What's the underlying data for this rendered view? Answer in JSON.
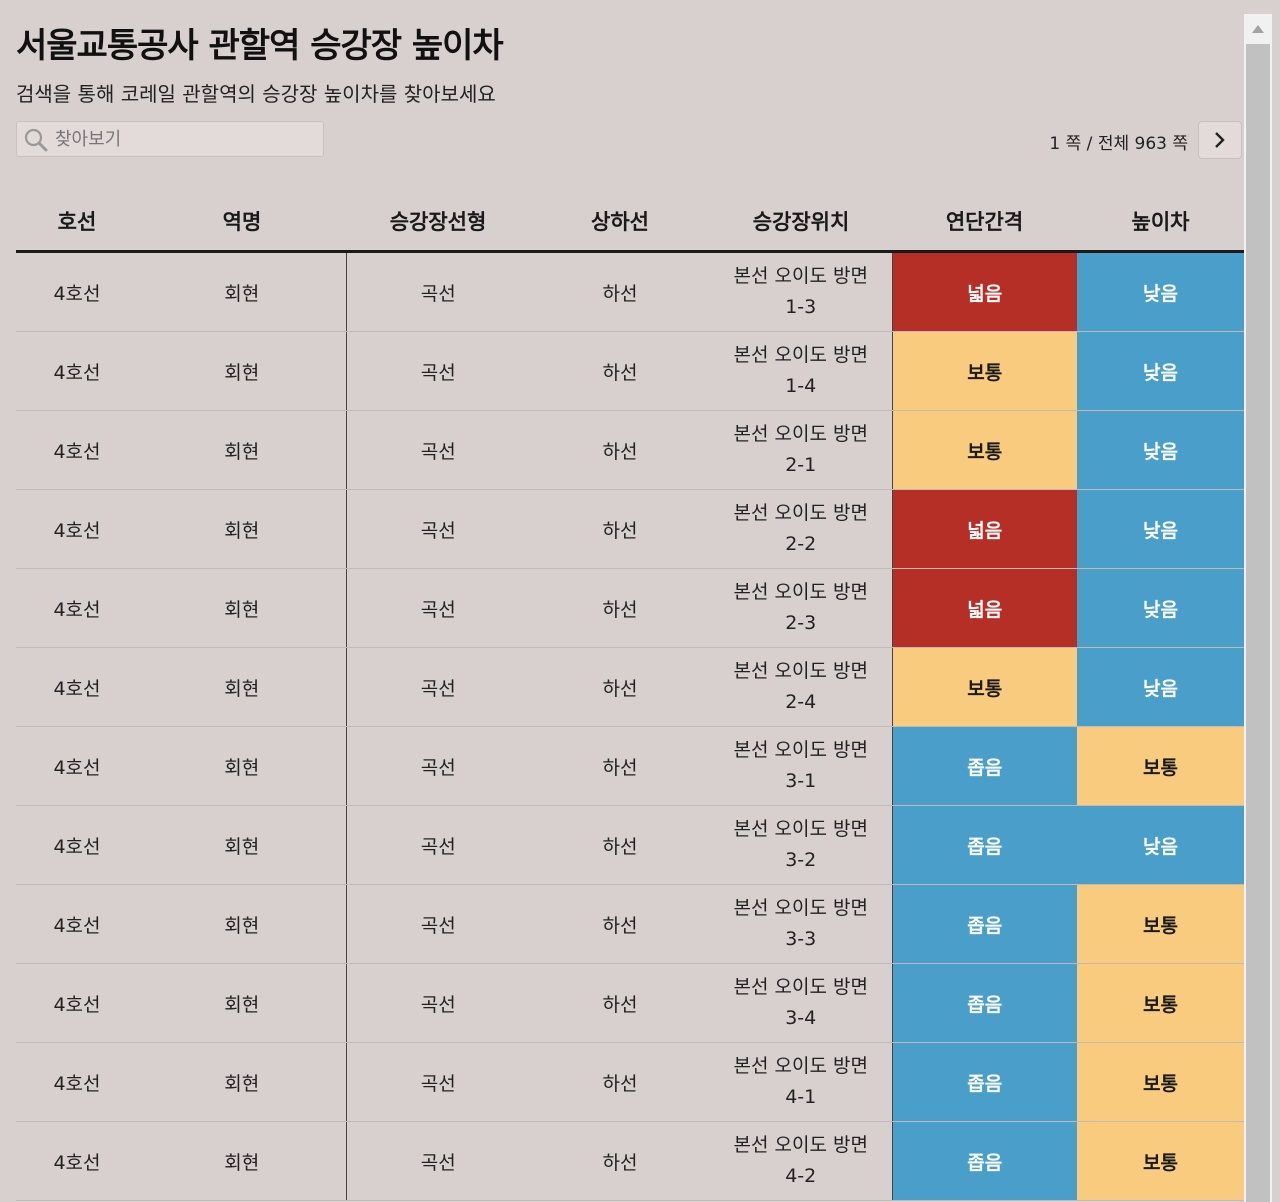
{
  "header": {
    "title": "서울교통공사 관할역 승강장 높이차",
    "subtitle": "검색을 통해 코레일 관할역의 승강장 높이차를 찾아보세요"
  },
  "search": {
    "placeholder": "찾아보기",
    "value": ""
  },
  "pager": {
    "text": "1 쪽 / 전체 963 쪽"
  },
  "colors": {
    "red": "#b52f27",
    "yellow": "#f8cb7f",
    "blue": "#4a9eca",
    "background": "#d8cfcf"
  },
  "icons": {
    "search": "search-icon",
    "next": "chevron-right-icon",
    "scroll_up": "triangle-up-icon"
  },
  "table": {
    "headers": [
      "호선",
      "역명",
      "승강장선형",
      "상하선",
      "승강장위치",
      "연단간격",
      "높이차"
    ],
    "rows": [
      {
        "line": "4호선",
        "station": "회현",
        "shape": "곡선",
        "direction": "하선",
        "location": "본선 오이도 방면 1-3",
        "gap": "넓음",
        "gap_color": "#b52f27",
        "height": "낮음",
        "height_color": "#4a9eca"
      },
      {
        "line": "4호선",
        "station": "회현",
        "shape": "곡선",
        "direction": "하선",
        "location": "본선 오이도 방면 1-4",
        "gap": "보통",
        "gap_color": "#f8cb7f",
        "height": "낮음",
        "height_color": "#4a9eca"
      },
      {
        "line": "4호선",
        "station": "회현",
        "shape": "곡선",
        "direction": "하선",
        "location": "본선 오이도 방면 2-1",
        "gap": "보통",
        "gap_color": "#f8cb7f",
        "height": "낮음",
        "height_color": "#4a9eca"
      },
      {
        "line": "4호선",
        "station": "회현",
        "shape": "곡선",
        "direction": "하선",
        "location": "본선 오이도 방면 2-2",
        "gap": "넓음",
        "gap_color": "#b52f27",
        "height": "낮음",
        "height_color": "#4a9eca"
      },
      {
        "line": "4호선",
        "station": "회현",
        "shape": "곡선",
        "direction": "하선",
        "location": "본선 오이도 방면 2-3",
        "gap": "넓음",
        "gap_color": "#b52f27",
        "height": "낮음",
        "height_color": "#4a9eca"
      },
      {
        "line": "4호선",
        "station": "회현",
        "shape": "곡선",
        "direction": "하선",
        "location": "본선 오이도 방면 2-4",
        "gap": "보통",
        "gap_color": "#f8cb7f",
        "height": "낮음",
        "height_color": "#4a9eca"
      },
      {
        "line": "4호선",
        "station": "회현",
        "shape": "곡선",
        "direction": "하선",
        "location": "본선 오이도 방면 3-1",
        "gap": "좁음",
        "gap_color": "#4a9eca",
        "height": "보통",
        "height_color": "#f8cb7f"
      },
      {
        "line": "4호선",
        "station": "회현",
        "shape": "곡선",
        "direction": "하선",
        "location": "본선 오이도 방면 3-2",
        "gap": "좁음",
        "gap_color": "#4a9eca",
        "height": "낮음",
        "height_color": "#4a9eca"
      },
      {
        "line": "4호선",
        "station": "회현",
        "shape": "곡선",
        "direction": "하선",
        "location": "본선 오이도 방면 3-3",
        "gap": "좁음",
        "gap_color": "#4a9eca",
        "height": "보통",
        "height_color": "#f8cb7f"
      },
      {
        "line": "4호선",
        "station": "회현",
        "shape": "곡선",
        "direction": "하선",
        "location": "본선 오이도 방면 3-4",
        "gap": "좁음",
        "gap_color": "#4a9eca",
        "height": "보통",
        "height_color": "#f8cb7f"
      },
      {
        "line": "4호선",
        "station": "회현",
        "shape": "곡선",
        "direction": "하선",
        "location": "본선 오이도 방면 4-1",
        "gap": "좁음",
        "gap_color": "#4a9eca",
        "height": "보통",
        "height_color": "#f8cb7f"
      },
      {
        "line": "4호선",
        "station": "회현",
        "shape": "곡선",
        "direction": "하선",
        "location": "본선 오이도 방면 4-2",
        "gap": "좁음",
        "gap_color": "#4a9eca",
        "height": "보통",
        "height_color": "#f8cb7f"
      }
    ]
  }
}
